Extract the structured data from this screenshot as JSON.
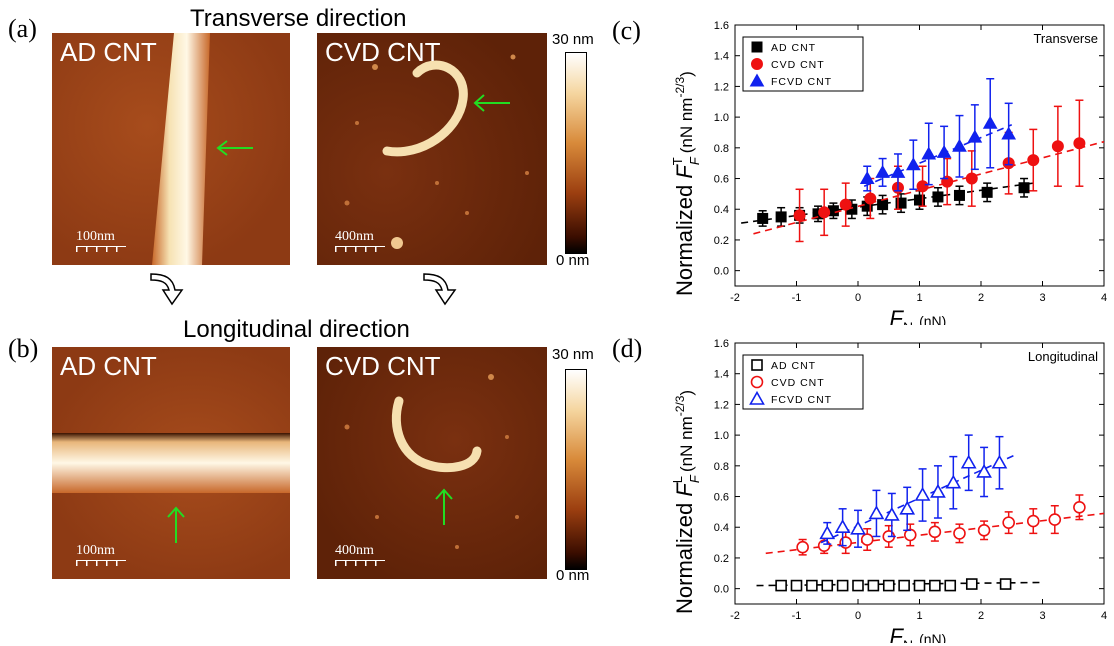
{
  "headings": {
    "transverse": "Transverse direction",
    "longitudinal": "Longitudinal direction"
  },
  "panel_labels": {
    "a": "(a)",
    "b": "(b)",
    "c": "(c)",
    "d": "(d)"
  },
  "images": {
    "a_left": {
      "title": "AD CNT",
      "scale": "100nm"
    },
    "a_right": {
      "title": "CVD CNT",
      "scale": "400nm"
    },
    "b_left": {
      "title": "AD CNT",
      "scale": "100nm"
    },
    "b_right": {
      "title": "CVD CNT",
      "scale": "400nm"
    }
  },
  "colorbar": {
    "max": "30 nm",
    "min": "0 nm"
  },
  "colors": {
    "ad": "#000000",
    "cvd": "#ee1111",
    "fcvd": "#1122ee",
    "arrow": "#22dd22"
  },
  "chart_data": [
    {
      "type": "scatter",
      "panel": "c",
      "annotation": "Transverse",
      "xlabel_main": "F",
      "xlabel_sub": "N",
      "xlabel_unit": "(nN)",
      "ylabel_prefix": "Normalized ",
      "ylabel_main": "F",
      "ylabel_sub": "F",
      "ylabel_sup": "T",
      "ylabel_unit": "(nN nm",
      "ylabel_exp": "-2/3",
      "ylabel_close": ")",
      "xlim": [
        -2,
        4
      ],
      "ylim": [
        -0.1,
        1.6
      ],
      "xticks": [
        -2,
        -1,
        0,
        1,
        2,
        3,
        4
      ],
      "yticks": [
        "0.0",
        "0.2",
        "0.4",
        "0.6",
        "0.8",
        "1.0",
        "1.2",
        "1.4",
        "1.6"
      ],
      "legend": [
        "AD CNT",
        "CVD CNT",
        "FCVD CNT"
      ],
      "series": [
        {
          "name": "AD CNT",
          "marker": "square",
          "filled": true,
          "x": [
            -1.55,
            -1.25,
            -0.95,
            -0.65,
            -0.4,
            -0.1,
            0.15,
            0.4,
            0.7,
            1.0,
            1.3,
            1.65,
            2.1,
            2.7
          ],
          "y": [
            0.34,
            0.35,
            0.36,
            0.37,
            0.39,
            0.4,
            0.42,
            0.43,
            0.44,
            0.46,
            0.48,
            0.49,
            0.51,
            0.54
          ],
          "err": [
            0.05,
            0.06,
            0.05,
            0.05,
            0.05,
            0.06,
            0.06,
            0.06,
            0.06,
            0.06,
            0.06,
            0.06,
            0.06,
            0.06
          ],
          "fit": [
            [
              -1.9,
              0.31
            ],
            [
              2.85,
              0.57
            ]
          ]
        },
        {
          "name": "CVD CNT",
          "marker": "circle",
          "filled": true,
          "x": [
            -0.95,
            -0.55,
            -0.2,
            0.2,
            0.65,
            1.05,
            1.45,
            1.85,
            2.45,
            2.85,
            3.25,
            3.6
          ],
          "y": [
            0.36,
            0.38,
            0.43,
            0.47,
            0.54,
            0.55,
            0.58,
            0.6,
            0.7,
            0.72,
            0.81,
            0.83
          ],
          "err": [
            0.17,
            0.15,
            0.14,
            0.13,
            0.14,
            0.13,
            0.15,
            0.18,
            0.2,
            0.2,
            0.26,
            0.28
          ],
          "fit": [
            [
              -1.7,
              0.24
            ],
            [
              4.0,
              0.84
            ]
          ]
        },
        {
          "name": "FCVD CNT",
          "marker": "triangle",
          "filled": true,
          "x": [
            0.15,
            0.4,
            0.65,
            0.9,
            1.15,
            1.4,
            1.65,
            1.9,
            2.15,
            2.45
          ],
          "y": [
            0.6,
            0.64,
            0.64,
            0.69,
            0.76,
            0.77,
            0.81,
            0.87,
            0.96,
            0.89
          ],
          "err": [
            0.08,
            0.09,
            0.12,
            0.16,
            0.2,
            0.17,
            0.2,
            0.21,
            0.29,
            0.2
          ],
          "fit": [
            [
              0.1,
              0.55
            ],
            [
              2.5,
              0.95
            ]
          ]
        }
      ]
    },
    {
      "type": "scatter",
      "panel": "d",
      "annotation": "Longitudinal",
      "xlabel_main": "F",
      "xlabel_sub": "N",
      "xlabel_unit": "(nN)",
      "ylabel_prefix": "Normalized ",
      "ylabel_main": "F",
      "ylabel_sub": "F",
      "ylabel_sup": "L",
      "ylabel_unit": "(nN nm",
      "ylabel_exp": "-2/3",
      "ylabel_close": ")",
      "xlim": [
        -2,
        4
      ],
      "ylim": [
        -0.1,
        1.6
      ],
      "xticks": [
        -2,
        -1,
        0,
        1,
        2,
        3,
        4
      ],
      "yticks": [
        "0.0",
        "0.2",
        "0.4",
        "0.6",
        "0.8",
        "1.0",
        "1.2",
        "1.4",
        "1.6"
      ],
      "legend": [
        "AD CNT",
        "CVD CNT",
        "FCVD CNT"
      ],
      "series": [
        {
          "name": "AD CNT",
          "marker": "square",
          "filled": false,
          "x": [
            -1.25,
            -1.0,
            -0.75,
            -0.5,
            -0.25,
            0.0,
            0.25,
            0.5,
            0.75,
            1.0,
            1.25,
            1.5,
            1.85,
            2.4
          ],
          "y": [
            0.02,
            0.02,
            0.02,
            0.02,
            0.02,
            0.02,
            0.02,
            0.02,
            0.02,
            0.02,
            0.02,
            0.02,
            0.03,
            0.03
          ],
          "err": [
            0.01,
            0.01,
            0.01,
            0.01,
            0.01,
            0.01,
            0.01,
            0.01,
            0.01,
            0.01,
            0.01,
            0.01,
            0.01,
            0.01
          ],
          "fit": [
            [
              -1.65,
              0.02
            ],
            [
              2.95,
              0.04
            ]
          ]
        },
        {
          "name": "CVD CNT",
          "marker": "circle",
          "filled": false,
          "x": [
            -0.9,
            -0.55,
            -0.2,
            0.15,
            0.5,
            0.85,
            1.25,
            1.65,
            2.05,
            2.45,
            2.85,
            3.2,
            3.6
          ],
          "y": [
            0.27,
            0.28,
            0.3,
            0.32,
            0.34,
            0.35,
            0.37,
            0.36,
            0.38,
            0.43,
            0.44,
            0.45,
            0.53
          ],
          "err": [
            0.05,
            0.05,
            0.07,
            0.07,
            0.07,
            0.07,
            0.06,
            0.06,
            0.06,
            0.07,
            0.08,
            0.09,
            0.08
          ],
          "fit": [
            [
              -1.5,
              0.23
            ],
            [
              4.0,
              0.49
            ]
          ]
        },
        {
          "name": "FCVD CNT",
          "marker": "triangle",
          "filled": false,
          "x": [
            -0.5,
            -0.25,
            0.0,
            0.3,
            0.55,
            0.8,
            1.05,
            1.3,
            1.55,
            1.8,
            2.05,
            2.3
          ],
          "y": [
            0.36,
            0.4,
            0.39,
            0.49,
            0.48,
            0.52,
            0.61,
            0.63,
            0.69,
            0.82,
            0.76,
            0.82
          ],
          "err": [
            0.07,
            0.12,
            0.12,
            0.15,
            0.14,
            0.14,
            0.17,
            0.17,
            0.17,
            0.18,
            0.16,
            0.17
          ],
          "fit": [
            [
              -0.6,
              0.3
            ],
            [
              2.55,
              0.87
            ]
          ]
        }
      ]
    }
  ]
}
